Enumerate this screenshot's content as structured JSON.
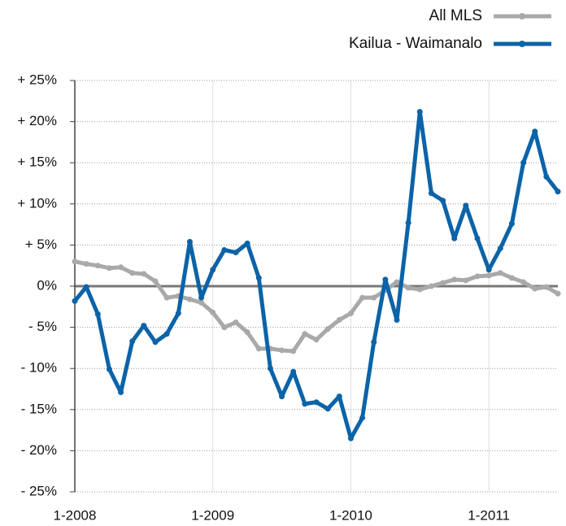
{
  "chart_data": {
    "type": "line",
    "categories": [
      "1-2008",
      null,
      null,
      null,
      null,
      null,
      null,
      null,
      null,
      null,
      null,
      null,
      "1-2009",
      null,
      null,
      null,
      null,
      null,
      null,
      null,
      null,
      null,
      null,
      null,
      "1-2010",
      null,
      null,
      null,
      null,
      null,
      null,
      null,
      null,
      null,
      null,
      null,
      "1-2011",
      null,
      null,
      null,
      null,
      null,
      null
    ],
    "series": [
      {
        "name": "All MLS",
        "color": "#a9a9a9",
        "values": [
          3.0,
          2.7,
          2.5,
          2.2,
          2.3,
          1.6,
          1.5,
          0.6,
          -1.4,
          -1.2,
          -1.6,
          -2.0,
          -3.2,
          -5.0,
          -4.4,
          -5.6,
          -7.6,
          -7.6,
          -7.8,
          -7.9,
          -5.8,
          -6.5,
          -5.2,
          -4.1,
          -3.3,
          -1.4,
          -1.4,
          -0.5,
          0.5,
          -0.2,
          -0.4,
          0.0,
          0.4,
          0.8,
          0.7,
          1.2,
          1.3,
          1.6,
          1.0,
          0.5,
          -0.3,
          -0.1,
          -0.9
        ]
      },
      {
        "name": "Kailua - Waimanalo",
        "color": "#0b63a8",
        "values": [
          -1.8,
          -0.1,
          -3.4,
          -10.1,
          -12.9,
          -6.7,
          -4.8,
          -6.8,
          -5.8,
          -3.3,
          5.4,
          -1.4,
          2.0,
          4.4,
          4.1,
          5.2,
          1.0,
          -10.0,
          -13.4,
          -10.4,
          -14.3,
          -14.1,
          -14.9,
          -13.4,
          -18.5,
          -16.0,
          -6.8,
          0.8,
          -4.1,
          7.7,
          21.2,
          11.3,
          10.4,
          5.8,
          9.8,
          5.8,
          2.0,
          4.6,
          7.6,
          15.0,
          18.8,
          13.3,
          11.5
        ]
      }
    ],
    "ylim": [
      -25,
      25
    ],
    "yticks": [
      {
        "value": -25,
        "label": "- 25%"
      },
      {
        "value": -20,
        "label": "- 20%"
      },
      {
        "value": -15,
        "label": "- 15%"
      },
      {
        "value": -10,
        "label": "- 10%"
      },
      {
        "value": -5,
        "label": "- 5%"
      },
      {
        "value": 0,
        "label": "0%"
      },
      {
        "value": 5,
        "label": "+ 5%"
      },
      {
        "value": 10,
        "label": "+ 10%"
      },
      {
        "value": 15,
        "label": "+ 15%"
      },
      {
        "value": 20,
        "label": "+ 20%"
      },
      {
        "value": 25,
        "label": "+ 25%"
      }
    ],
    "grid": true,
    "legend": "top-right"
  }
}
